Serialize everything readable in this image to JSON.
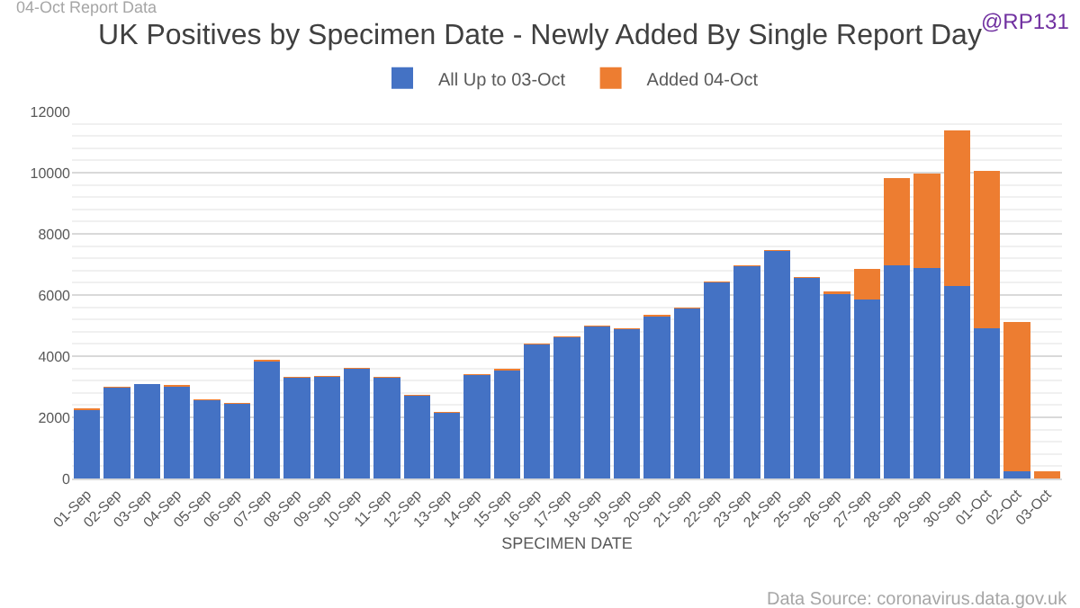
{
  "chart_data": {
    "type": "bar",
    "stacked": true,
    "title": "UK Positives by Specimen Date - Newly Added By Single Report Day",
    "xlabel": "SPECIMEN DATE",
    "annotations": [
      "04-Oct Report Data",
      "@RP131",
      "Data Source: coronavirus.data.gov.uk"
    ],
    "categories": [
      "01-Sep",
      "02-Sep",
      "03-Sep",
      "04-Sep",
      "05-Sep",
      "06-Sep",
      "07-Sep",
      "08-Sep",
      "09-Sep",
      "10-Sep",
      "11-Sep",
      "12-Sep",
      "13-Sep",
      "14-Sep",
      "15-Sep",
      "16-Sep",
      "17-Sep",
      "18-Sep",
      "19-Sep",
      "20-Sep",
      "21-Sep",
      "22-Sep",
      "23-Sep",
      "24-Sep",
      "25-Sep",
      "26-Sep",
      "27-Sep",
      "28-Sep",
      "29-Sep",
      "30-Sep",
      "01-Oct",
      "02-Oct",
      "03-Oct"
    ],
    "series": [
      {
        "name": "All Up to 03-Oct",
        "color": "#4472c4",
        "values": [
          2240,
          2970,
          3080,
          3010,
          2560,
          2430,
          3830,
          3290,
          3320,
          3600,
          3290,
          2700,
          2140,
          3390,
          3530,
          4370,
          4630,
          4960,
          4870,
          5290,
          5570,
          6400,
          6940,
          7430,
          6560,
          6020,
          5860,
          6960,
          6870,
          6280,
          4900,
          240,
          0
        ]
      },
      {
        "name": "Added 04-Oct",
        "color": "#ed7d31",
        "values": [
          50,
          20,
          null,
          50,
          30,
          40,
          50,
          30,
          40,
          30,
          30,
          30,
          30,
          30,
          50,
          50,
          30,
          40,
          50,
          50,
          30,
          30,
          30,
          50,
          30,
          100,
          990,
          2850,
          3110,
          5110,
          5150,
          4870,
          240
        ]
      }
    ],
    "ylim": [
      0,
      12000
    ],
    "yticks": [
      0,
      2000,
      4000,
      6000,
      8000,
      10000,
      12000
    ],
    "grid": "y",
    "legend": "top"
  }
}
